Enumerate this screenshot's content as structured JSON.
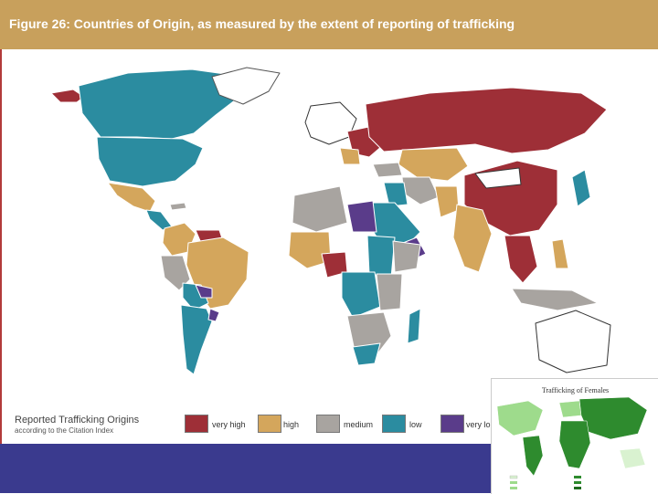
{
  "title": "Figure 26: Countries of Origin, as measured by the extent of reporting of trafficking",
  "legend": {
    "title": "Reported Trafficking Origins",
    "subtitle": "according to the Citation Index",
    "items": [
      {
        "label": "very high",
        "color": "#9e2f37"
      },
      {
        "label": "high",
        "color": "#d4a65c"
      },
      {
        "label": "medium",
        "color": "#a8a4a0"
      },
      {
        "label": "low",
        "color": "#2b8ca0"
      },
      {
        "label": "very lo",
        "color": "#5a3c8a"
      }
    ]
  },
  "inset": {
    "title": "Trafficking of Females",
    "colors": {
      "land": "#2e8b2e",
      "light": "#9edb8c",
      "pale": "#d9f2d0"
    }
  },
  "colors": {
    "header": "#c8a05c",
    "bar": "#3a3a8e",
    "border": "#b23a3a"
  }
}
